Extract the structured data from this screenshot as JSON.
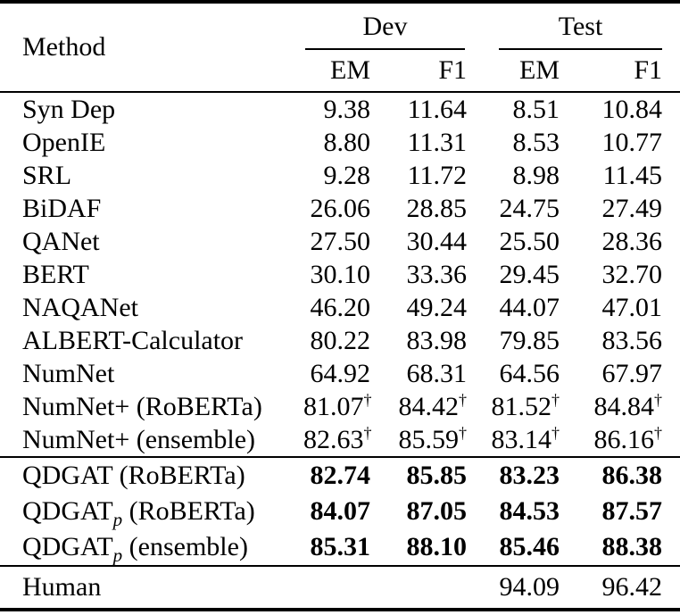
{
  "page": {
    "background_color": "#ffffff",
    "text_color": "#000000"
  },
  "table": {
    "header": {
      "method": "Method",
      "groups": [
        {
          "label": "Dev"
        },
        {
          "label": "Test"
        }
      ],
      "subcolumns": [
        "EM",
        "F1",
        "EM",
        "F1"
      ]
    },
    "sections": [
      {
        "name": "baselines",
        "emphasis": "normal",
        "rows": [
          {
            "method": {
              "name": "Syn Dep"
            },
            "values": [
              {
                "v": "9.38"
              },
              {
                "v": "11.64"
              },
              {
                "v": "8.51"
              },
              {
                "v": "10.84"
              }
            ]
          },
          {
            "method": {
              "name": "OpenIE"
            },
            "values": [
              {
                "v": "8.80"
              },
              {
                "v": "11.31"
              },
              {
                "v": "8.53"
              },
              {
                "v": "10.77"
              }
            ]
          },
          {
            "method": {
              "name": "SRL"
            },
            "values": [
              {
                "v": "9.28"
              },
              {
                "v": "11.72"
              },
              {
                "v": "8.98"
              },
              {
                "v": "11.45"
              }
            ]
          },
          {
            "method": {
              "name": "BiDAF"
            },
            "values": [
              {
                "v": "26.06"
              },
              {
                "v": "28.85"
              },
              {
                "v": "24.75"
              },
              {
                "v": "27.49"
              }
            ]
          },
          {
            "method": {
              "name": "QANet"
            },
            "values": [
              {
                "v": "27.50"
              },
              {
                "v": "30.44"
              },
              {
                "v": "25.50"
              },
              {
                "v": "28.36"
              }
            ]
          },
          {
            "method": {
              "name": "BERT"
            },
            "values": [
              {
                "v": "30.10"
              },
              {
                "v": "33.36"
              },
              {
                "v": "29.45"
              },
              {
                "v": "32.70"
              }
            ]
          },
          {
            "method": {
              "name": "NAQANet"
            },
            "values": [
              {
                "v": "46.20"
              },
              {
                "v": "49.24"
              },
              {
                "v": "44.07"
              },
              {
                "v": "47.01"
              }
            ]
          },
          {
            "method": {
              "name": "ALBERT-Calculator"
            },
            "values": [
              {
                "v": "80.22"
              },
              {
                "v": "83.98"
              },
              {
                "v": "79.85"
              },
              {
                "v": "83.56"
              }
            ]
          },
          {
            "method": {
              "name": "NumNet"
            },
            "values": [
              {
                "v": "64.92"
              },
              {
                "v": "68.31"
              },
              {
                "v": "64.56"
              },
              {
                "v": "67.97"
              }
            ]
          },
          {
            "method": {
              "name": "NumNet+ (RoBERTa)"
            },
            "values": [
              {
                "v": "81.07",
                "sup": "†"
              },
              {
                "v": "84.42",
                "sup": "†"
              },
              {
                "v": "81.52",
                "sup": "†"
              },
              {
                "v": "84.84",
                "sup": "†"
              }
            ]
          },
          {
            "method": {
              "name": "NumNet+ (ensemble)"
            },
            "values": [
              {
                "v": "82.63",
                "sup": "†"
              },
              {
                "v": "85.59",
                "sup": "†"
              },
              {
                "v": "83.14",
                "sup": "†"
              },
              {
                "v": "86.16",
                "sup": "†"
              }
            ]
          }
        ]
      },
      {
        "name": "qdgat",
        "emphasis": "bold",
        "rows": [
          {
            "method": {
              "name": "QDGAT (RoBERTa)"
            },
            "values": [
              {
                "v": "82.74"
              },
              {
                "v": "85.85"
              },
              {
                "v": "83.23"
              },
              {
                "v": "86.38"
              }
            ]
          },
          {
            "method": {
              "name": "QDGAT",
              "sub": "p",
              "rest": " (RoBERTa)"
            },
            "values": [
              {
                "v": "84.07"
              },
              {
                "v": "87.05"
              },
              {
                "v": "84.53"
              },
              {
                "v": "87.57"
              }
            ]
          },
          {
            "method": {
              "name": "QDGAT",
              "sub": "p",
              "rest": " (ensemble)"
            },
            "values": [
              {
                "v": "85.31"
              },
              {
                "v": "88.10"
              },
              {
                "v": "85.46"
              },
              {
                "v": "88.38"
              }
            ]
          }
        ]
      },
      {
        "name": "human",
        "emphasis": "normal",
        "rows": [
          {
            "method": {
              "name": "Human"
            },
            "values": [
              {
                "v": ""
              },
              {
                "v": ""
              },
              {
                "v": "94.09"
              },
              {
                "v": "96.42"
              }
            ]
          }
        ]
      }
    ]
  }
}
